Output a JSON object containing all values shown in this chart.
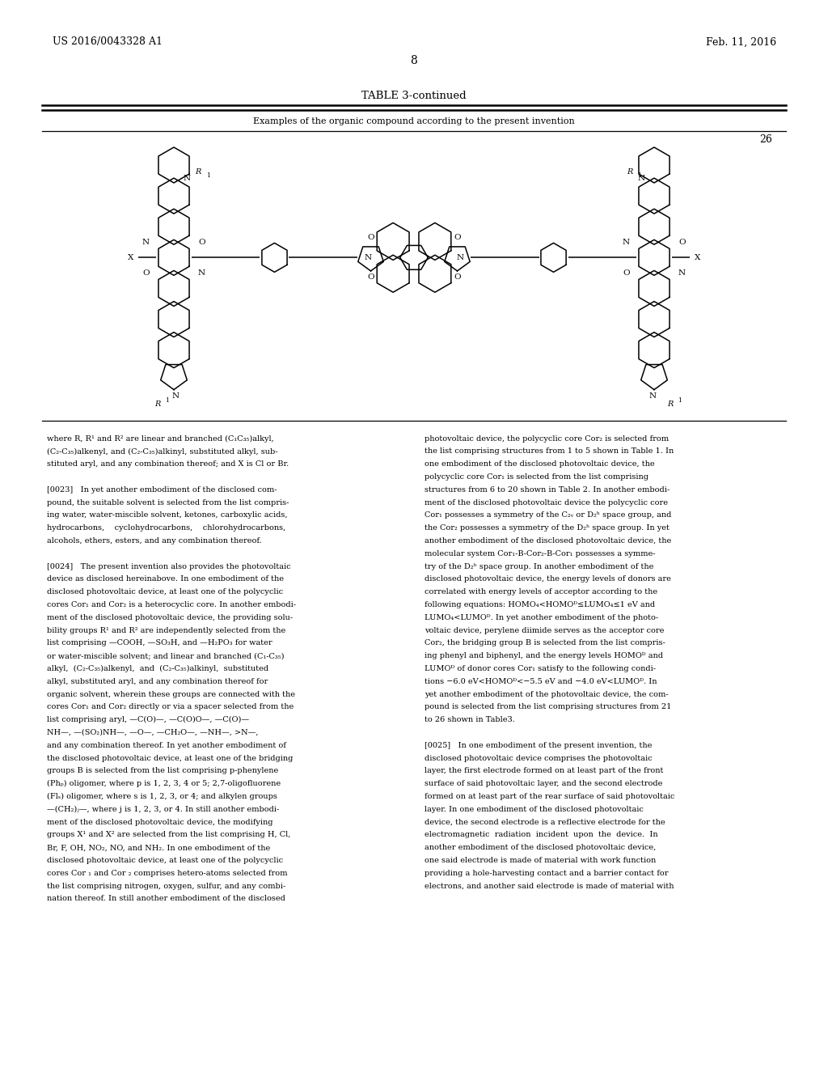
{
  "page_width": 10.24,
  "page_height": 13.2,
  "bg_color": "#ffffff",
  "header_left": "US 2016/0043328 A1",
  "header_right": "Feb. 11, 2016",
  "page_num": "8",
  "table_title": "TABLE 3-continued",
  "table_subtitle": "Examples of the organic compound according to the present invention",
  "compound_num": "26",
  "left_col_text": [
    "where R, R¹ and R² are linear and branched (C₁C₃₅)alkyl,",
    "(C₂-C₃₅)alkenyl, and (C₂-C₃₅)alkinyl, substituted alkyl, sub-",
    "stituted aryl, and any combination thereof; and X is Cl or Br.",
    " ",
    "[0023]   In yet another embodiment of the disclosed com-",
    "pound, the suitable solvent is selected from the list compris-",
    "ing water, water-miscible solvent, ketones, carboxylic acids,",
    "hydrocarbons,    cyclohydrocarbons,    chlorohydrocarbons,",
    "alcohols, ethers, esters, and any combination thereof.",
    " ",
    "[0024]   The present invention also provides the photovoltaic",
    "device as disclosed hereinabove. In one embodiment of the",
    "disclosed photovoltaic device, at least one of the polycyclic",
    "cores Cor₁ and Cor₂ is a heterocyclic core. In another embodi-",
    "ment of the disclosed photovoltaic device, the providing solu-",
    "bility groups R¹ and R² are independently selected from the",
    "list comprising —COOH, —SO₃H, and —H₂PO₃ for water",
    "or water-miscible solvent; and linear and branched (C₁-C₃₅)",
    "alkyl,  (C₂-C₃₅)alkenyl,  and  (C₂-C₃₅)alkinyl,  substituted",
    "alkyl, substituted aryl, and any combination thereof for",
    "organic solvent, wherein these groups are connected with the",
    "cores Cor₁ and Cor₂ directly or via a spacer selected from the",
    "list comprising aryl, —C(O)—, —C(O)O—, —C(O)—",
    "NH—, —(SO₂)NH—, —O—, —CH₂O—, —NH—, >N—,",
    "and any combination thereof. In yet another embodiment of",
    "the disclosed photovoltaic device, at least one of the bridging",
    "groups B is selected from the list comprising p-phenylene",
    "(Phₚ) oligomer, where p is 1, 2, 3, 4 or 5; 2,7-oligofluorene",
    "(Flₛ) oligomer, where s is 1, 2, 3, or 4; and alkylen groups",
    "—(CH₂)ⱼ—, where j is 1, 2, 3, or 4. In still another embodi-",
    "ment of the disclosed photovoltaic device, the modifying",
    "groups X¹ and X² are selected from the list comprising H, Cl,",
    "Br, F, OH, NO₂, NO, and NH₂. In one embodiment of the",
    "disclosed photovoltaic device, at least one of the polycyclic",
    "cores Cor ₁ and Cor ₂ comprises hetero-atoms selected from",
    "the list comprising nitrogen, oxygen, sulfur, and any combi-",
    "nation thereof. In still another embodiment of the disclosed"
  ],
  "right_col_text": [
    "photovoltaic device, the polycyclic core Cor₂ is selected from",
    "the list comprising structures from 1 to 5 shown in Table 1. In",
    "one embodiment of the disclosed photovoltaic device, the",
    "polycyclic core Cor₁ is selected from the list comprising",
    "structures from 6 to 20 shown in Table 2. In another embodi-",
    "ment of the disclosed photovoltaic device the polycyclic core",
    "Cor₁ possesses a symmetry of the C₂ᵥ or D₂ʰ space group, and",
    "the Cor₂ possesses a symmetry of the D₂ʰ space group. In yet",
    "another embodiment of the disclosed photovoltaic device, the",
    "molecular system Cor₁-B-Cor₂-B-Cor₁ possesses a symme-",
    "try of the D₂ʰ space group. In another embodiment of the",
    "disclosed photovoltaic device, the energy levels of donors are",
    "correlated with energy levels of acceptor according to the",
    "following equations: HOMO₄<HOMOᴰ≤LUMO₄≤1 eV and",
    "LUMO₄<LUMOᴰ. In yet another embodiment of the photo-",
    "voltaic device, perylene diimide serves as the acceptor core",
    "Cor₂, the bridging group B is selected from the list compris-",
    "ing phenyl and biphenyl, and the energy levels HOMOᴰ and",
    "LUMOᴰ of donor cores Cor₁ satisfy to the following condi-",
    "tions −6.0 eV<HOMOᴰ<−5.5 eV and −4.0 eV<LUMOᴰ. In",
    "yet another embodiment of the photovoltaic device, the com-",
    "pound is selected from the list comprising structures from 21",
    "to 26 shown in Table3.",
    " ",
    "[0025]   In one embodiment of the present invention, the",
    "disclosed photovoltaic device comprises the photovoltaic",
    "layer, the first electrode formed on at least part of the front",
    "surface of said photovoltaic layer, and the second electrode",
    "formed on at least part of the rear surface of said photovoltaic",
    "layer. In one embodiment of the disclosed photovoltaic",
    "device, the second electrode is a reflective electrode for the",
    "electromagnetic  radiation  incident  upon  the  device.  In",
    "another embodiment of the disclosed photovoltaic device,",
    "one said electrode is made of material with work function",
    "providing a hole-harvesting contact and a barrier contact for",
    "electrons, and another said electrode is made of material with"
  ]
}
